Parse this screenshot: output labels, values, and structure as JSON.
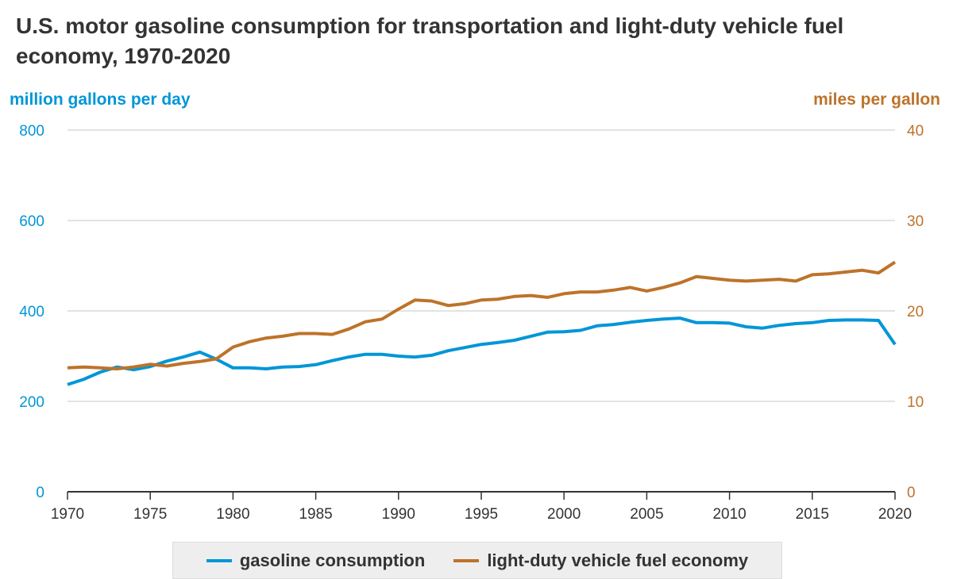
{
  "chart_data": {
    "type": "line",
    "title": "U.S. motor gasoline consumption for transportation and light-duty vehicle fuel economy, 1970-2020",
    "ylabel_left": "million gallons per day",
    "ylabel_right": "miles per gallon",
    "xlim": [
      1970,
      2020
    ],
    "ylim_left": [
      0,
      800
    ],
    "ylim_right": [
      0,
      40
    ],
    "x_ticks": [
      "1970",
      "1975",
      "1980",
      "1985",
      "1990",
      "1995",
      "2000",
      "2005",
      "2010",
      "2015",
      "2020"
    ],
    "y_ticks_left": [
      "0",
      "200",
      "400",
      "600",
      "800"
    ],
    "y_ticks_right": [
      "0",
      "10",
      "20",
      "30",
      "40"
    ],
    "grid": true,
    "legend_position": "bottom",
    "x": [
      1970,
      1971,
      1972,
      1973,
      1974,
      1975,
      1976,
      1977,
      1978,
      1979,
      1980,
      1981,
      1982,
      1983,
      1984,
      1985,
      1986,
      1987,
      1988,
      1989,
      1990,
      1991,
      1992,
      1993,
      1994,
      1995,
      1996,
      1997,
      1998,
      1999,
      2000,
      2001,
      2002,
      2003,
      2004,
      2005,
      2006,
      2007,
      2008,
      2009,
      2010,
      2011,
      2012,
      2013,
      2014,
      2015,
      2016,
      2017,
      2018,
      2019,
      2020
    ],
    "series": [
      {
        "name": "gasoline consumption",
        "axis": "left",
        "color": "#0096d7",
        "values": [
          237,
          249,
          265,
          276,
          270,
          277,
          289,
          298,
          309,
          293,
          274,
          274,
          272,
          276,
          277,
          281,
          290,
          298,
          304,
          304,
          300,
          298,
          302,
          312,
          319,
          326,
          330,
          335,
          344,
          353,
          354,
          357,
          367,
          370,
          375,
          379,
          382,
          384,
          374,
          374,
          373,
          365,
          362,
          368,
          372,
          374,
          379,
          380,
          380,
          379,
          326
        ]
      },
      {
        "name": "light-duty vehicle fuel economy",
        "axis": "right",
        "color": "#bd732a",
        "values": [
          13.7,
          13.8,
          13.7,
          13.6,
          13.8,
          14.1,
          13.9,
          14.2,
          14.4,
          14.7,
          16.0,
          16.6,
          17.0,
          17.2,
          17.5,
          17.5,
          17.4,
          18.0,
          18.8,
          19.1,
          20.2,
          21.2,
          21.1,
          20.6,
          20.8,
          21.2,
          21.3,
          21.6,
          21.7,
          21.5,
          21.9,
          22.1,
          22.1,
          22.3,
          22.6,
          22.2,
          22.6,
          23.1,
          23.8,
          23.6,
          23.4,
          23.3,
          23.4,
          23.5,
          23.3,
          24.0,
          24.1,
          24.3,
          24.5,
          24.2,
          25.4
        ]
      }
    ]
  }
}
